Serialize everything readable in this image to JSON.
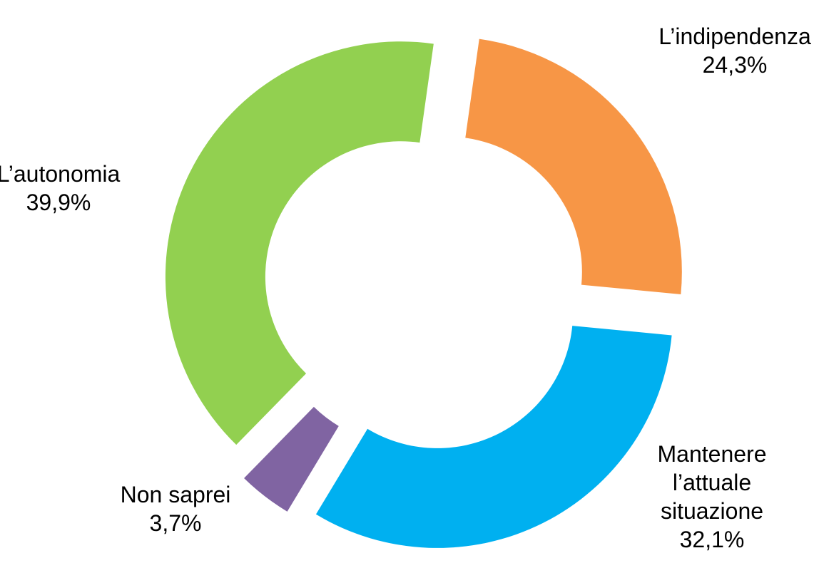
{
  "chart_data": {
    "type": "pie",
    "variant": "exploded-donut",
    "categories": [
      "L’indipendenza",
      "Mantenere l’attuale situazione",
      "Non saprei",
      "L’autonomia"
    ],
    "values": [
      24.3,
      32.1,
      3.7,
      39.9
    ],
    "colors": [
      "#F79646",
      "#00B0F0",
      "#8064A2",
      "#92D050"
    ],
    "labels": [
      {
        "lines": [
          "L’indipendenza"
        ],
        "value": "24,3%"
      },
      {
        "lines": [
          "Mantenere",
          "l’attuale",
          "situazione"
        ],
        "value": "32,1%"
      },
      {
        "lines": [
          "Non saprei"
        ],
        "value": "3,7%"
      },
      {
        "lines": [
          "L’autonomia"
        ],
        "value": "39,9%"
      }
    ],
    "title": "",
    "legend": "none"
  }
}
